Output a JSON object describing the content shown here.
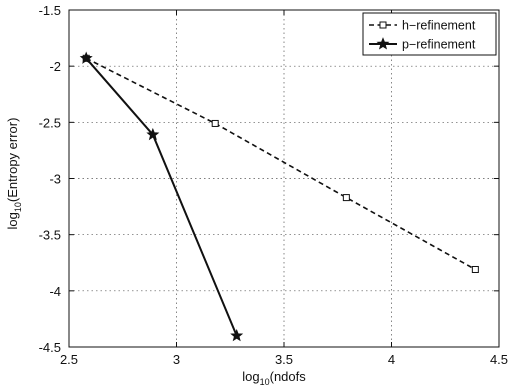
{
  "chart_data": {
    "type": "line",
    "xlabel": {
      "base": "log",
      "sub": "10",
      "rest": "(ndofs"
    },
    "ylabel": {
      "base": "log",
      "sub": "10",
      "rest": "(Entropy error)"
    },
    "xlim": [
      2.5,
      4.5
    ],
    "ylim": [
      -4.5,
      -1.5
    ],
    "xticks": [
      2.5,
      3,
      3.5,
      4,
      4.5
    ],
    "xtick_labels": [
      "2.5",
      "3",
      "3.5",
      "4",
      "4.5"
    ],
    "yticks": [
      -4.5,
      -4,
      -3.5,
      -3,
      -2.5,
      -2,
      -1.5
    ],
    "ytick_labels": [
      "-4.5",
      "-4",
      "-3.5",
      "-3",
      "-2.5",
      "-2",
      "-1.5"
    ],
    "grid": true,
    "legend_position": "top-right",
    "series": [
      {
        "name": "h−refinement",
        "style": "dashed",
        "marker": "square",
        "color": "#111111",
        "x": [
          2.58,
          3.18,
          3.79,
          4.39
        ],
        "y": [
          -1.93,
          -2.51,
          -3.17,
          -3.81
        ]
      },
      {
        "name": "p−refinement",
        "style": "solid",
        "marker": "star",
        "color": "#111111",
        "x": [
          2.58,
          2.89,
          3.28
        ],
        "y": [
          -1.93,
          -2.61,
          -4.4
        ]
      }
    ]
  }
}
